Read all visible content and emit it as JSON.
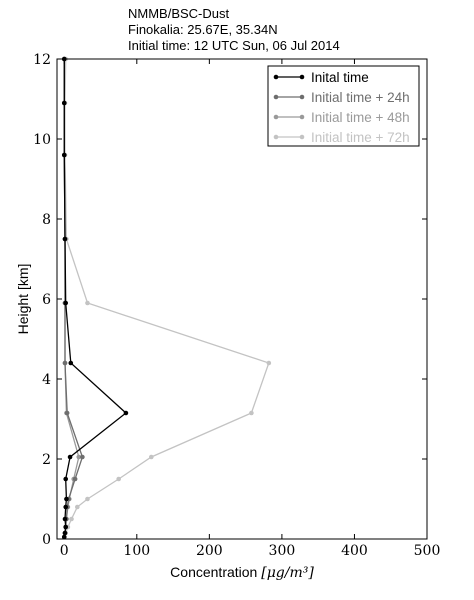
{
  "header": {
    "line1": "NMMB/BSC-Dust",
    "line2": "Finokalia: 25.67E, 35.34N",
    "line3": "Initial time: 12 UTC Sun, 06 Jul 2014"
  },
  "chart_data": {
    "type": "line",
    "xlabel": "Concentration",
    "xlabel_unit": "[μg/m³]",
    "ylabel": "Height [km]",
    "xlim": [
      -10,
      500
    ],
    "ylim": [
      0,
      12
    ],
    "xticks": [
      0,
      100,
      200,
      300,
      400,
      500
    ],
    "yticks": [
      0,
      2,
      4,
      6,
      8,
      10,
      12
    ],
    "legend_position": "top-right",
    "grid": false,
    "series": [
      {
        "name": "Inital time",
        "color": "#000000",
        "points": [
          [
            0,
            0.05
          ],
          [
            1,
            0.15
          ],
          [
            2,
            0.3
          ],
          [
            1,
            0.5
          ],
          [
            2,
            0.8
          ],
          [
            3,
            1.0
          ],
          [
            2,
            1.5
          ],
          [
            8,
            2.05
          ],
          [
            85,
            3.15
          ],
          [
            9,
            4.4
          ],
          [
            2,
            5.9
          ],
          [
            1,
            7.5
          ],
          [
            0,
            9.6
          ],
          [
            0,
            10.9
          ],
          [
            0,
            12
          ]
        ]
      },
      {
        "name": "Initial time + 24h",
        "color": "#6e6e6e",
        "points": [
          [
            0,
            0.05
          ],
          [
            1,
            0.15
          ],
          [
            2,
            0.3
          ],
          [
            3,
            0.5
          ],
          [
            4,
            0.8
          ],
          [
            6,
            1.0
          ],
          [
            15,
            1.5
          ],
          [
            25,
            2.05
          ],
          [
            4,
            3.15
          ],
          [
            1,
            4.4
          ],
          [
            1,
            5.9
          ],
          [
            1,
            7.5
          ],
          [
            0,
            9.6
          ],
          [
            0,
            10.9
          ],
          [
            0,
            12
          ]
        ]
      },
      {
        "name": "Initial time + 48h",
        "color": "#9a9a9a",
        "points": [
          [
            0,
            0.05
          ],
          [
            1,
            0.15
          ],
          [
            2,
            0.3
          ],
          [
            3,
            0.5
          ],
          [
            5,
            0.8
          ],
          [
            7,
            1.0
          ],
          [
            13,
            1.5
          ],
          [
            20,
            2.05
          ],
          [
            3,
            3.15
          ],
          [
            1,
            4.4
          ],
          [
            1,
            5.9
          ],
          [
            1,
            7.5
          ],
          [
            0,
            9.6
          ],
          [
            0,
            10.9
          ],
          [
            0,
            12
          ]
        ]
      },
      {
        "name": "Initial time + 72h",
        "color": "#c3c3c3",
        "points": [
          [
            0,
            0.05
          ],
          [
            2,
            0.15
          ],
          [
            5,
            0.3
          ],
          [
            10,
            0.5
          ],
          [
            18,
            0.8
          ],
          [
            32,
            1.0
          ],
          [
            75,
            1.5
          ],
          [
            120,
            2.05
          ],
          [
            258,
            3.15
          ],
          [
            282,
            4.4
          ],
          [
            32,
            5.9
          ],
          [
            3,
            7.5
          ],
          [
            1,
            9.6
          ],
          [
            1,
            10.9
          ],
          [
            2,
            12
          ]
        ]
      }
    ]
  }
}
